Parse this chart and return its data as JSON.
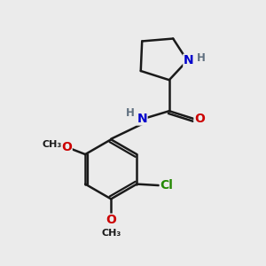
{
  "background_color": "#ebebeb",
  "bond_color": "#1a1a1a",
  "bond_width": 1.8,
  "atom_colors": {
    "N": "#0000cc",
    "O": "#cc0000",
    "Cl": "#228800",
    "H": "#607080"
  },
  "font_size_atom": 10,
  "font_size_h": 8.5,
  "font_size_methyl": 8
}
